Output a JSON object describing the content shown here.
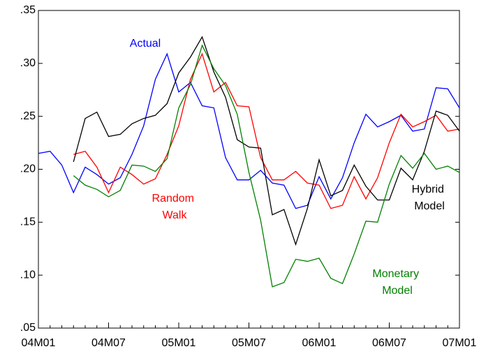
{
  "chart_data": {
    "type": "line",
    "categories": [
      "04M01",
      null,
      null,
      null,
      null,
      null,
      "04M07",
      null,
      null,
      null,
      null,
      null,
      "05M01",
      null,
      null,
      null,
      null,
      null,
      "05M07",
      null,
      null,
      null,
      null,
      null,
      "06M01",
      null,
      null,
      null,
      null,
      null,
      "06M07",
      null,
      null,
      null,
      null,
      null,
      "07M01"
    ],
    "series": [
      {
        "name": "Actual",
        "color": "#0000ff",
        "values": [
          0.215,
          0.217,
          0.204,
          0.178,
          0.202,
          0.195,
          0.186,
          0.192,
          0.214,
          0.241,
          0.285,
          0.309,
          0.273,
          0.282,
          0.26,
          0.258,
          0.211,
          0.19,
          0.19,
          0.199,
          0.187,
          0.185,
          0.163,
          0.166,
          0.193,
          0.172,
          0.192,
          0.225,
          0.252,
          0.24,
          0.245,
          0.251,
          0.236,
          0.238,
          0.277,
          0.276,
          0.258
        ]
      },
      {
        "name": "Random Walk",
        "color": "#ff0000",
        "values": [
          null,
          null,
          null,
          0.214,
          0.217,
          0.202,
          0.178,
          0.202,
          0.195,
          0.186,
          0.191,
          0.214,
          0.241,
          0.285,
          0.309,
          0.273,
          0.282,
          0.26,
          0.259,
          0.211,
          0.19,
          0.19,
          0.198,
          0.187,
          0.185,
          0.163,
          0.166,
          0.193,
          0.172,
          0.192,
          0.225,
          0.252,
          0.24,
          0.245,
          0.251,
          0.236,
          0.238
        ]
      },
      {
        "name": "Hybrid Model",
        "color": "#000000",
        "values": [
          null,
          null,
          null,
          0.207,
          0.248,
          0.254,
          0.231,
          0.233,
          0.243,
          0.248,
          0.251,
          0.262,
          0.291,
          0.306,
          0.325,
          0.292,
          0.268,
          0.228,
          0.221,
          0.22,
          0.157,
          0.162,
          0.129,
          0.163,
          0.209,
          0.175,
          0.18,
          0.204,
          0.184,
          0.171,
          0.171,
          0.201,
          0.19,
          0.217,
          0.255,
          0.251,
          0.236
        ]
      },
      {
        "name": "Monetary Model",
        "color": "#008000",
        "values": [
          null,
          null,
          null,
          0.194,
          0.185,
          0.181,
          0.174,
          0.18,
          0.204,
          0.203,
          0.198,
          0.21,
          0.258,
          0.28,
          0.317,
          0.295,
          0.279,
          0.252,
          0.197,
          0.152,
          0.089,
          0.093,
          0.115,
          0.113,
          0.116,
          0.097,
          0.092,
          0.12,
          0.151,
          0.15,
          0.186,
          0.213,
          0.201,
          0.215,
          0.2,
          0.203,
          0.197
        ]
      }
    ],
    "ylim": [
      0.05,
      0.35
    ],
    "yticks": [
      {
        "value": 0.05,
        "label": ".05"
      },
      {
        "value": 0.1,
        "label": ".10"
      },
      {
        "value": 0.15,
        "label": ".15"
      },
      {
        "value": 0.2,
        "label": ".20"
      },
      {
        "value": 0.25,
        "label": ".25"
      },
      {
        "value": 0.3,
        "label": ".30"
      },
      {
        "value": 0.35,
        "label": ".35"
      }
    ],
    "grid": false
  }
}
